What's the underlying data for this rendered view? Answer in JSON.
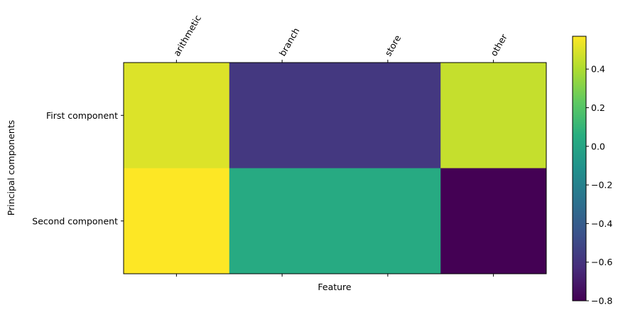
{
  "chart_data": {
    "type": "heatmap",
    "title": "",
    "xlabel": "Feature",
    "ylabel": "Principal components",
    "x_categories": [
      "arithmetic",
      "branch",
      "store",
      "other"
    ],
    "y_categories": [
      "First component",
      "Second component"
    ],
    "values": [
      [
        0.5,
        -0.58,
        -0.58,
        0.45
      ],
      [
        0.57,
        0.03,
        0.03,
        -0.8
      ]
    ],
    "x_tick_position": "top",
    "x_tick_rotation": "60 degrees",
    "colormap": "viridis",
    "colorbar": {
      "range": [
        -0.8,
        0.57
      ],
      "ticks": [
        0.4,
        0.2,
        0.0,
        -0.2,
        -0.4,
        -0.6,
        -0.8
      ],
      "tick_labels": [
        "0.4",
        "0.2",
        "0.0",
        "−0.2",
        "−0.4",
        "−0.6",
        "−0.8"
      ]
    },
    "grid": false,
    "colorbar_placement": "right"
  }
}
